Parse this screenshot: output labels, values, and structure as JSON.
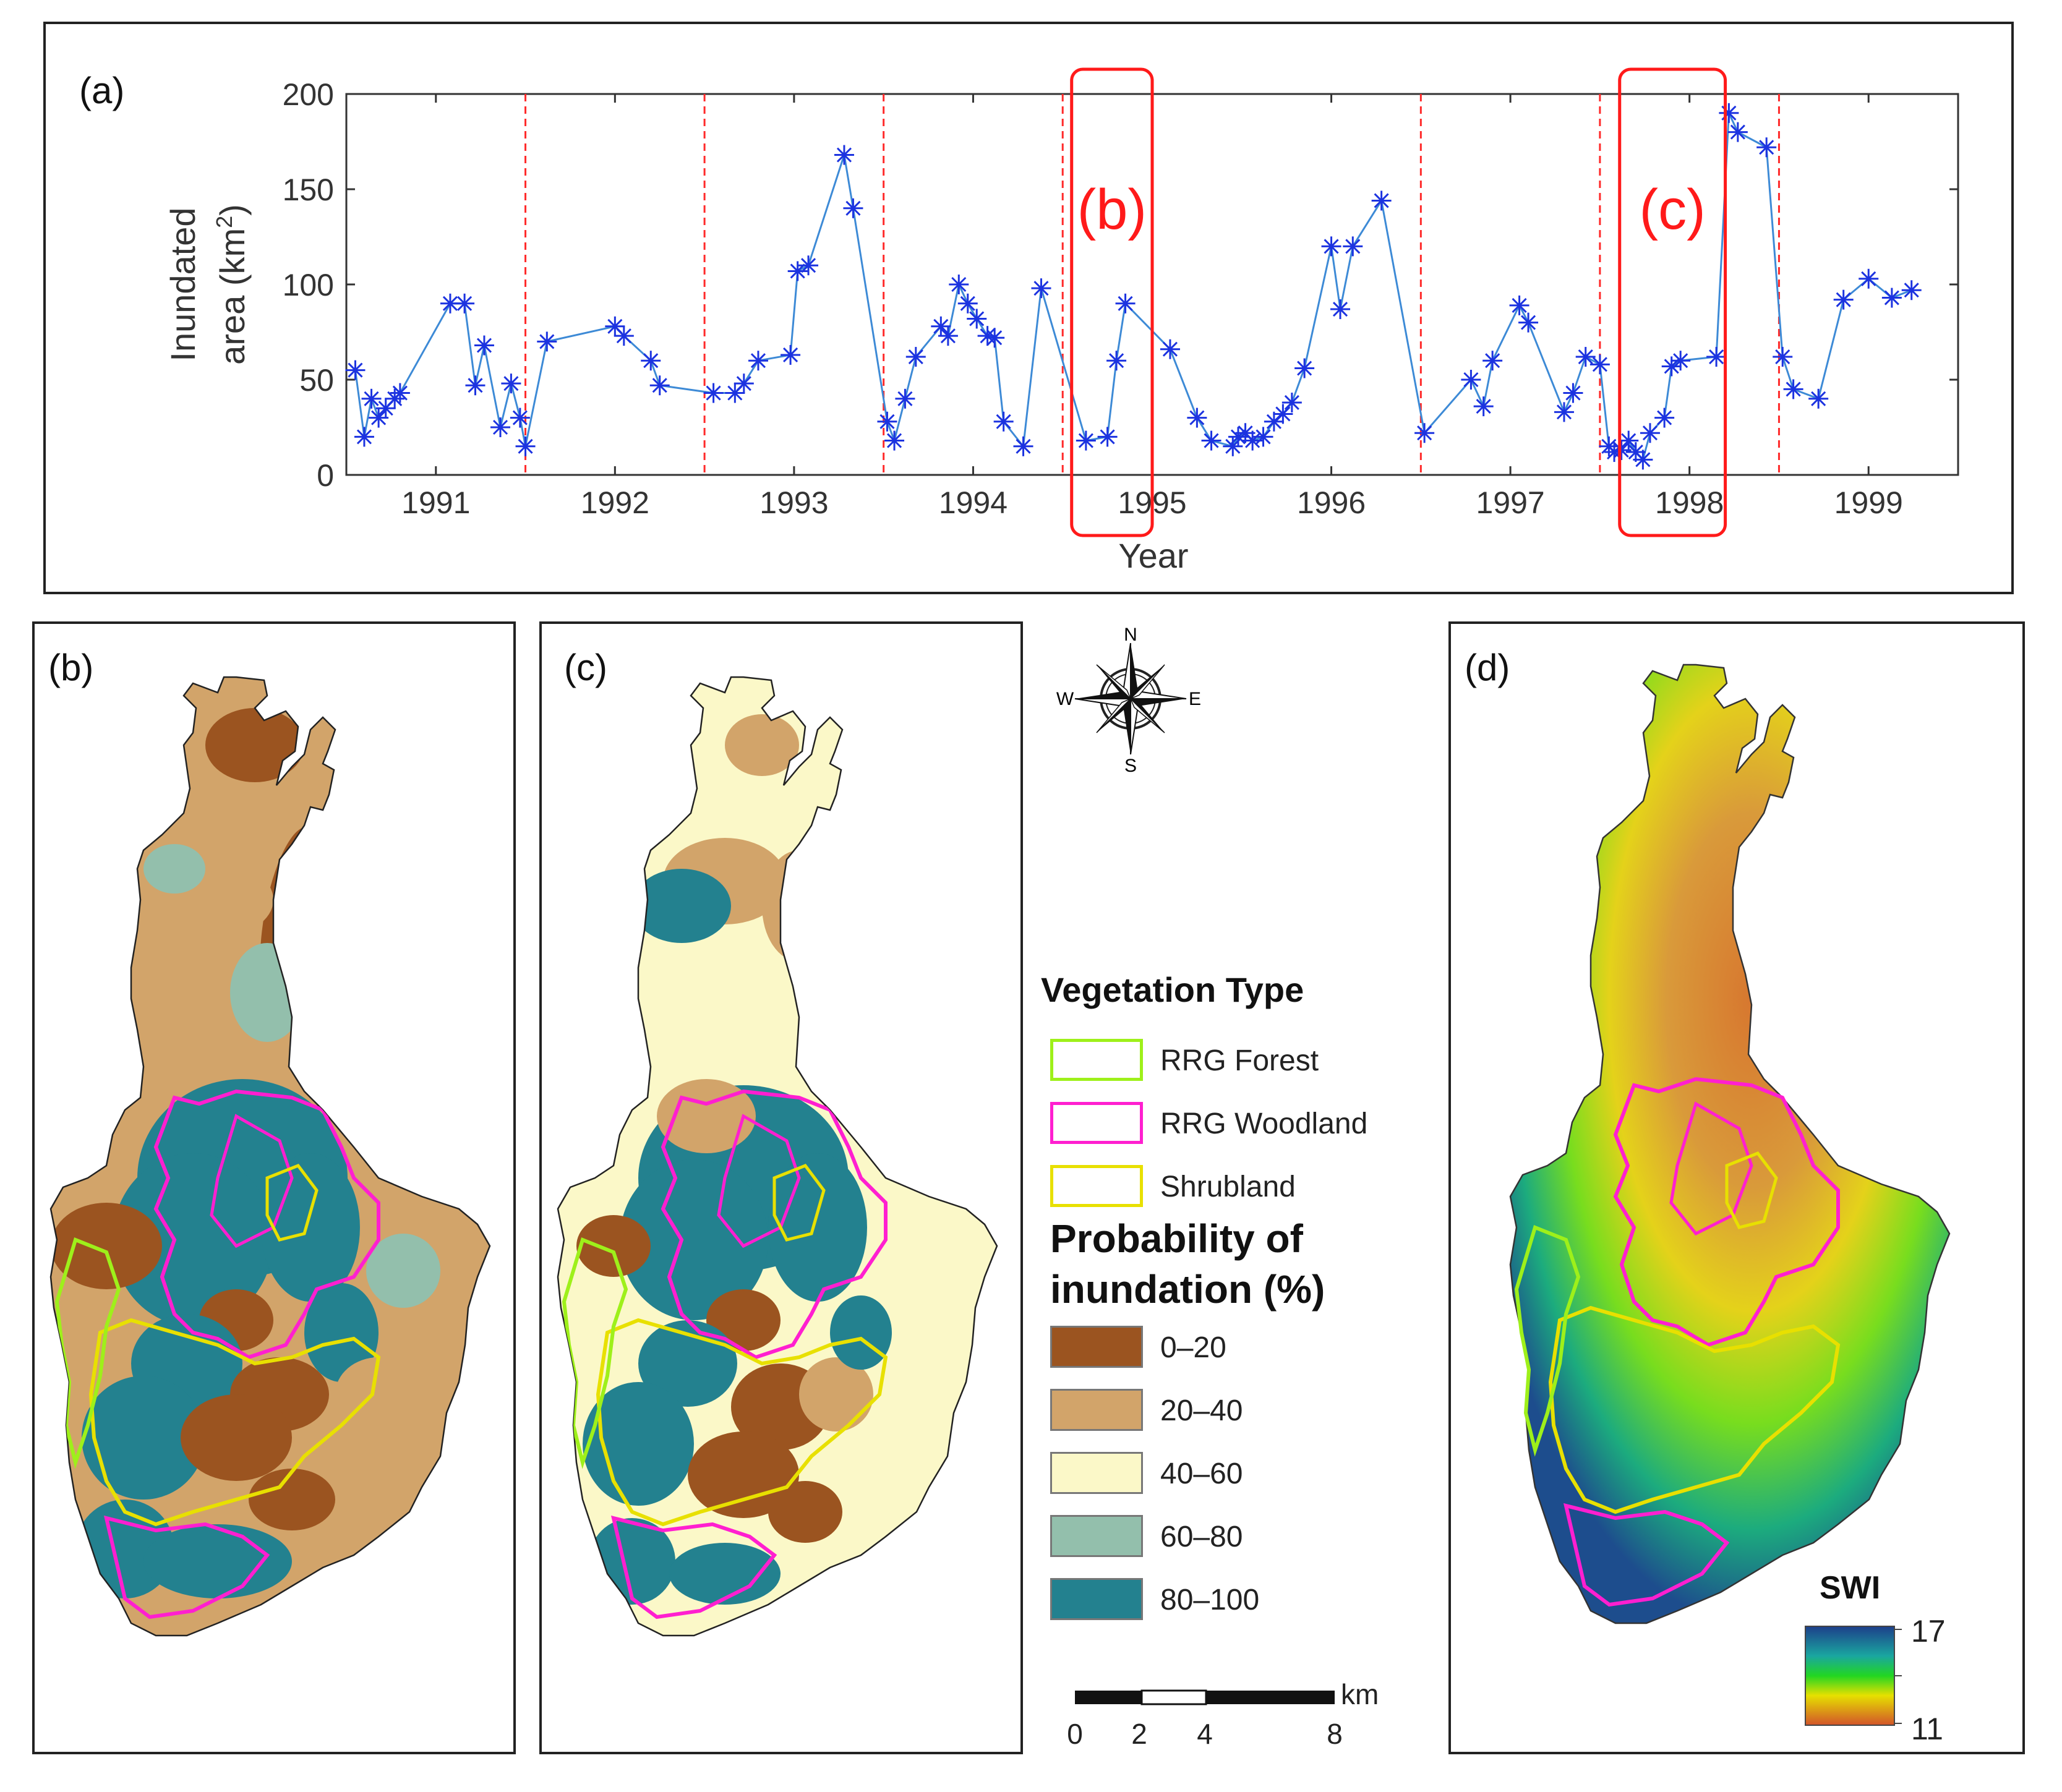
{
  "panel_a": {
    "label": "(a)",
    "ylabel_line1": "Inundated",
    "ylabel_line2": "area (km",
    "ylabel_sup": "2",
    "ylabel_close": ")",
    "xlabel": "Year",
    "box_b_label": "(b)",
    "box_c_label": "(c)"
  },
  "chart_data": {
    "type": "line",
    "title": "",
    "xlabel": "Year",
    "ylabel": "Inundated area (km2)",
    "xlim": [
      1990.5,
      1999.5
    ],
    "ylim": [
      0,
      200
    ],
    "yticks": [
      0,
      50,
      100,
      150,
      200
    ],
    "xticks": [
      1991,
      1992,
      1993,
      1994,
      1995,
      1996,
      1997,
      1998,
      1999
    ],
    "xtick_labels": [
      "1991",
      "1992",
      "1993",
      "1994",
      "1995",
      "1996",
      "1997",
      "1998",
      "1999"
    ],
    "ytick_labels": [
      "0",
      "50",
      "100",
      "150",
      "200"
    ],
    "dashed_lines_x": [
      1991.5,
      1992.5,
      1993.5,
      1994.5,
      1996.5,
      1997.5,
      1998.5
    ],
    "highlight_boxes": [
      {
        "label": "(b)",
        "x_range": [
          1994.55,
          1995.0
        ]
      },
      {
        "label": "(c)",
        "x_range": [
          1997.61,
          1998.2
        ]
      }
    ],
    "series": [
      {
        "name": "Inundated area",
        "color": "#1f5fbf",
        "marker": "asterisk",
        "x": [
          1990.55,
          1990.6,
          1990.64,
          1990.68,
          1990.72,
          1990.77,
          1990.8,
          1991.08,
          1991.16,
          1991.22,
          1991.27,
          1991.36,
          1991.42,
          1991.47,
          1991.5,
          1991.62,
          1992.0,
          1992.05,
          1992.2,
          1992.25,
          1992.55,
          1992.67,
          1992.72,
          1992.8,
          1992.98,
          1993.02,
          1993.08,
          1993.28,
          1993.33,
          1993.52,
          1993.56,
          1993.62,
          1993.68,
          1993.82,
          1993.86,
          1993.92,
          1993.97,
          1994.02,
          1994.08,
          1994.12,
          1994.17,
          1994.28,
          1994.38,
          1994.63,
          1994.75,
          1994.8,
          1994.85,
          1995.1,
          1995.25,
          1995.33,
          1995.45,
          1995.48,
          1995.52,
          1995.56,
          1995.62,
          1995.68,
          1995.73,
          1995.78,
          1995.85,
          1996.0,
          1996.05,
          1996.12,
          1996.28,
          1996.52,
          1996.78,
          1996.85,
          1996.9,
          1997.05,
          1997.1,
          1997.3,
          1997.35,
          1997.42,
          1997.5,
          1997.55,
          1997.58,
          1997.62,
          1997.66,
          1997.7,
          1997.74,
          1997.78,
          1997.86,
          1997.9,
          1997.95,
          1998.15,
          1998.22,
          1998.27,
          1998.43,
          1998.52,
          1998.58,
          1998.72,
          1998.86,
          1999.0,
          1999.13,
          1999.24
        ],
        "y": [
          55,
          20,
          40,
          30,
          35,
          40,
          43,
          90,
          90,
          47,
          68,
          25,
          48,
          30,
          15,
          70,
          78,
          73,
          60,
          47,
          43,
          43,
          48,
          60,
          63,
          107,
          110,
          168,
          140,
          28,
          18,
          40,
          62,
          78,
          73,
          100,
          90,
          82,
          73,
          72,
          28,
          15,
          98,
          18,
          20,
          60,
          90,
          66,
          30,
          18,
          15,
          20,
          22,
          18,
          20,
          28,
          32,
          38,
          56,
          120,
          87,
          120,
          144,
          22,
          50,
          36,
          60,
          89,
          80,
          33,
          43,
          62,
          58,
          15,
          12,
          13,
          18,
          12,
          8,
          22,
          30,
          57,
          60,
          62,
          190,
          180,
          172,
          62,
          45,
          40,
          92,
          103,
          93,
          97
        ]
      }
    ]
  },
  "panel_b": {
    "label": "(b)"
  },
  "panel_c": {
    "label": "(c)"
  },
  "panel_d": {
    "label": "(d)"
  },
  "compass": {
    "n": "N",
    "s": "S",
    "e": "E",
    "w": "W"
  },
  "legend": {
    "veg_title": "Vegetation Type",
    "veg_items": [
      {
        "label": "RRG Forest",
        "color": "#9ef01a"
      },
      {
        "label": "RRG Woodland",
        "color": "#ff1fd0"
      },
      {
        "label": "Shrubland",
        "color": "#e8e000"
      }
    ],
    "prob_title_1": "Probability of",
    "prob_title_2": "inundation (%)",
    "prob_items": [
      {
        "label": "0–20",
        "color": "#9b5420"
      },
      {
        "label": "20–40",
        "color": "#d2a46a"
      },
      {
        "label": "40–60",
        "color": "#fbf8c8"
      },
      {
        "label": "60–80",
        "color": "#93bfac"
      },
      {
        "label": "80–100",
        "color": "#23818f"
      }
    ]
  },
  "scalebar": {
    "unit": "km",
    "labels": [
      "0",
      "2",
      "4",
      "8"
    ]
  },
  "swi": {
    "title": "SWI",
    "max": "17",
    "min": "11"
  }
}
